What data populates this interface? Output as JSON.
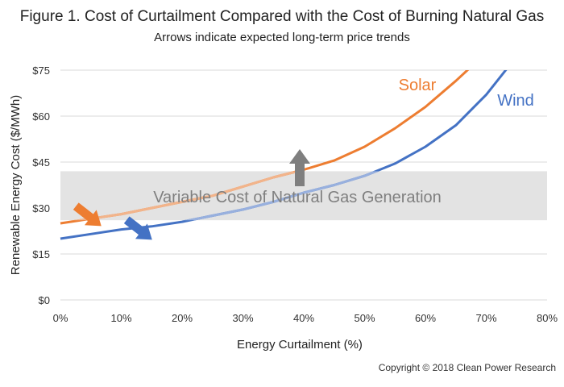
{
  "chart_data": {
    "type": "line",
    "title": "Figure 1. Cost of Curtailment Compared with the Cost of Burning Natural Gas",
    "subtitle": "Arrows indicate expected long-term price trends",
    "xlabel": "Energy Curtailment (%)",
    "ylabel": "Renewable Energy Cost ($/MWh)",
    "xlim": [
      0,
      80
    ],
    "ylim": [
      0,
      75
    ],
    "x_ticks": [
      "0%",
      "10%",
      "20%",
      "30%",
      "40%",
      "50%",
      "60%",
      "70%",
      "80%"
    ],
    "y_ticks": [
      "$0",
      "$15",
      "$30",
      "$45",
      "$60",
      "$75"
    ],
    "band": {
      "label": "Variable Cost of Natural Gas Generation",
      "y_range": [
        26,
        42
      ],
      "color": "#e3e3e3"
    },
    "series": [
      {
        "name": "Solar",
        "color": "#ed7d31",
        "faded_color": "#f2b48b",
        "x": [
          0,
          5,
          10,
          15,
          20,
          25,
          30,
          35,
          40,
          45,
          50,
          55,
          60,
          65,
          68
        ],
        "values": [
          25,
          26.5,
          28,
          30,
          32,
          34,
          37,
          40,
          42.5,
          45.5,
          50,
          56,
          63,
          71.5,
          77
        ]
      },
      {
        "name": "Wind",
        "color": "#4472c4",
        "faded_color": "#98b0de",
        "x": [
          0,
          5,
          10,
          15,
          20,
          25,
          30,
          35,
          40,
          45,
          50,
          55,
          60,
          65,
          70,
          74
        ],
        "values": [
          20,
          21.5,
          23,
          24,
          25.5,
          27.5,
          29.5,
          32,
          35,
          37.5,
          40.5,
          44.5,
          50,
          57,
          67,
          77
        ]
      }
    ],
    "arrows": [
      {
        "name": "solar-price-arrow",
        "direction": "down",
        "color": "#ed7d31"
      },
      {
        "name": "wind-price-arrow",
        "direction": "down",
        "color": "#4472c4"
      },
      {
        "name": "gas-price-arrow",
        "direction": "up",
        "color": "#7f7f7f"
      }
    ]
  },
  "footer": {
    "copyright": "Copyright © 2018 Clean Power Research"
  }
}
